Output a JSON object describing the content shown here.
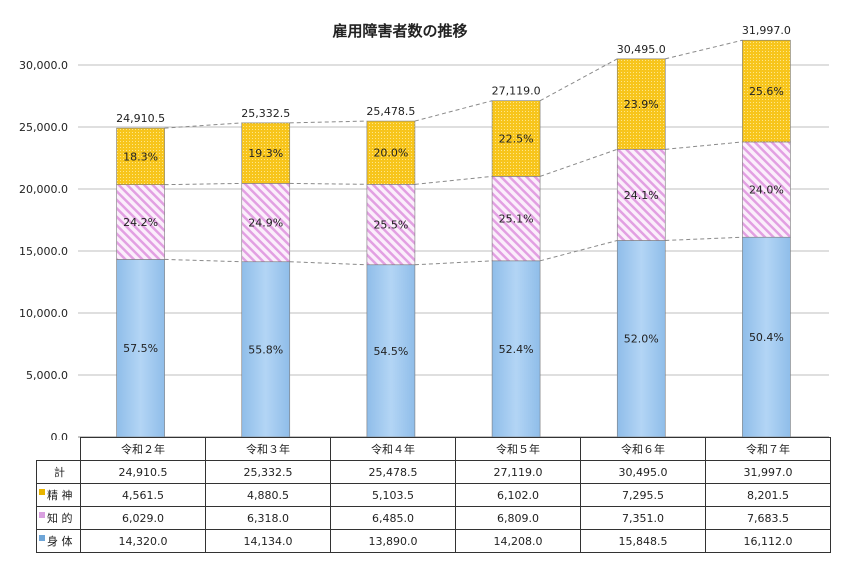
{
  "chart_data": {
    "type": "bar",
    "stacked": true,
    "title": "雇用障害者数の推移",
    "categories": [
      "令和２年",
      "令和３年",
      "令和４年",
      "令和５年",
      "令和６年",
      "令和７年"
    ],
    "ylim": [
      0,
      30000
    ],
    "yticks": [
      "0.0",
      "5,000.0",
      "10,000.0",
      "15,000.0",
      "20,000.0",
      "25,000.0",
      "30,000.0"
    ],
    "grid": true,
    "series": [
      {
        "name": "身 体",
        "color": "#a9cff2",
        "values": [
          14320.0,
          14134.0,
          13890.0,
          14208.0,
          15848.5,
          16112.0
        ],
        "percent_labels": [
          "57.5%",
          "55.8%",
          "54.5%",
          "52.4%",
          "52.0%",
          "50.4%"
        ]
      },
      {
        "name": "知 的",
        "color": "#e6a6e6",
        "values": [
          6029.0,
          6318.0,
          6485.0,
          6809.0,
          7351.0,
          7683.5
        ],
        "percent_labels": [
          "24.2%",
          "24.9%",
          "25.5%",
          "25.1%",
          "24.1%",
          "24.0%"
        ]
      },
      {
        "name": "精 神",
        "color": "#f5c21a",
        "values": [
          4561.5,
          4880.5,
          5103.5,
          6102.0,
          7295.5,
          8201.5
        ],
        "percent_labels": [
          "18.3%",
          "19.3%",
          "20.0%",
          "22.5%",
          "23.9%",
          "25.6%"
        ]
      }
    ],
    "totals": {
      "name": "計",
      "values": [
        "24,910.5",
        "25,332.5",
        "25,478.5",
        "27,119.0",
        "30,495.0",
        "31,997.0"
      ]
    }
  },
  "table": {
    "rows": [
      {
        "label": "計",
        "values": [
          "24,910.5",
          "25,332.5",
          "25,478.5",
          "27,119.0",
          "30,495.0",
          "31,997.0"
        ]
      },
      {
        "label": "精 神",
        "swatch": "#e8b400",
        "values": [
          "4,561.5",
          "4,880.5",
          "5,103.5",
          "6,102.0",
          "7,295.5",
          "8,201.5"
        ]
      },
      {
        "label": "知 的",
        "swatch": "#d9a0e0",
        "values": [
          "6,029.0",
          "6,318.0",
          "6,485.0",
          "6,809.0",
          "7,351.0",
          "7,683.5"
        ]
      },
      {
        "label": "身 体",
        "swatch": "#6fa6d8",
        "values": [
          "14,320.0",
          "14,134.0",
          "13,890.0",
          "14,208.0",
          "15,848.5",
          "16,112.0"
        ]
      }
    ]
  }
}
